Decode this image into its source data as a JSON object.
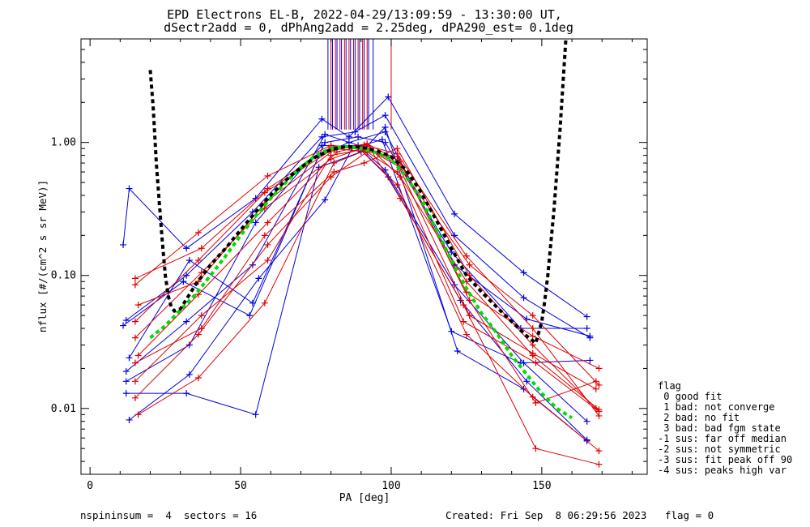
{
  "chart_data": {
    "type": "line",
    "title": "EPD Electrons EL-B, 2022-04-29/13:09:59 - 13:30:00 UT,",
    "subtitle": "dSectr2add = 0, dPhAng2add = 2.25deg, dPA290_est=   0.1deg",
    "xlabel": "PA [deg]",
    "ylabel": "nflux [#/(cm^2 s sr MeV)]",
    "xlim": [
      -3,
      185
    ],
    "ylim": [
      0.0032,
      6.0
    ],
    "yscale": "log",
    "x_ticks": [
      0,
      50,
      100,
      150
    ],
    "y_ticks": [
      {
        "value": 0.01,
        "label": "0.01"
      },
      {
        "value": 0.1,
        "label": "0.10"
      },
      {
        "value": 1.0,
        "label": "1.00"
      }
    ],
    "grid": false,
    "colors": {
      "blue": "#0000e0",
      "red": "#e00000",
      "fit_green": "#00dd00",
      "fit_black": "#000000"
    },
    "blue_sweeps": [
      {
        "x": [
          11,
          13,
          32,
          55,
          77,
          86,
          99,
          121,
          144,
          165
        ],
        "y": [
          0.17,
          0.45,
          0.16,
          0.38,
          1.5,
          1.1,
          2.2,
          0.29,
          0.105,
          0.049
        ]
      },
      {
        "x": [
          12,
          32,
          54,
          77,
          88,
          98,
          121,
          144,
          166
        ],
        "y": [
          0.046,
          0.1,
          0.3,
          1.1,
          1.2,
          1.6,
          0.2,
          0.068,
          0.034
        ]
      },
      {
        "x": [
          13,
          33,
          54,
          78,
          89,
          98,
          120,
          143,
          165
        ],
        "y": [
          0.024,
          0.13,
          0.062,
          1.0,
          1.1,
          1.0,
          0.15,
          0.04,
          0.04
        ]
      },
      {
        "x": [
          12,
          32,
          55,
          76,
          90,
          98,
          122,
          144,
          165
        ],
        "y": [
          0.013,
          0.013,
          0.009,
          0.65,
          0.85,
          1.3,
          0.027,
          0.014,
          0.0057
        ]
      },
      {
        "x": [
          13,
          33,
          56,
          78,
          87,
          97,
          120,
          143,
          166
        ],
        "y": [
          0.0082,
          0.018,
          0.095,
          0.37,
          0.9,
          1.05,
          0.038,
          0.022,
          0.023
        ]
      },
      {
        "x": [
          11,
          31,
          53,
          76,
          86,
          98,
          121,
          145,
          166
        ],
        "y": [
          0.042,
          0.09,
          0.05,
          0.8,
          1.0,
          1.2,
          0.12,
          0.047,
          0.035
        ]
      },
      {
        "x": [
          12,
          33,
          55,
          77,
          89,
          99,
          123,
          145,
          165
        ],
        "y": [
          0.016,
          0.03,
          0.25,
          0.95,
          0.92,
          0.55,
          0.065,
          0.016,
          0.0058
        ]
      },
      {
        "x": [
          12,
          32,
          54,
          78,
          89,
          98,
          121,
          144,
          165
        ],
        "y": [
          0.019,
          0.045,
          0.12,
          1.15,
          0.95,
          0.62,
          0.085,
          0.022,
          0.008
        ]
      }
    ],
    "red_sweeps": [
      {
        "x": [
          15,
          36,
          59,
          80,
          92,
          103,
          126,
          147,
          169
        ],
        "y": [
          0.085,
          0.21,
          0.56,
          0.95,
          0.9,
          0.65,
          0.12,
          0.05,
          0.015
        ]
      },
      {
        "x": [
          15,
          36,
          58,
          81,
          92,
          102,
          125,
          147,
          169
        ],
        "y": [
          0.045,
          0.13,
          0.42,
          0.9,
          0.85,
          0.78,
          0.075,
          0.035,
          0.02
        ]
      },
      {
        "x": [
          15,
          37,
          58,
          80,
          91,
          102,
          126,
          147,
          168
        ],
        "y": [
          0.034,
          0.105,
          0.32,
          0.75,
          0.92,
          0.7,
          0.05,
          0.026,
          0.014
        ]
      },
      {
        "x": [
          16,
          36,
          59,
          82,
          92,
          103,
          124,
          148,
          169
        ],
        "y": [
          0.025,
          0.072,
          0.25,
          0.85,
          0.95,
          0.55,
          0.045,
          0.022,
          0.0095
        ]
      },
      {
        "x": [
          15,
          37,
          59,
          80,
          90,
          102,
          125,
          147,
          169
        ],
        "y": [
          0.016,
          0.05,
          0.13,
          0.8,
          0.88,
          0.48,
          0.036,
          0.0122,
          0.0048
        ]
      },
      {
        "x": [
          16,
          36,
          58,
          81,
          93,
          103,
          124,
          148,
          169
        ],
        "y": [
          0.009,
          0.017,
          0.062,
          0.7,
          0.9,
          0.38,
          0.06,
          0.005,
          0.0038
        ]
      },
      {
        "x": [
          15,
          37,
          58,
          81,
          91,
          102,
          126,
          147,
          168
        ],
        "y": [
          0.022,
          0.04,
          0.2,
          0.6,
          0.7,
          0.9,
          0.1,
          0.03,
          0.01
        ]
      },
      {
        "x": [
          15,
          36,
          59,
          80,
          92,
          102,
          125,
          147,
          169
        ],
        "y": [
          0.012,
          0.036,
          0.17,
          0.55,
          0.85,
          0.6,
          0.09,
          0.025,
          0.0098
        ]
      },
      {
        "x": [
          16,
          36,
          58,
          81,
          92,
          103,
          126,
          148,
          168
        ],
        "y": [
          0.06,
          0.09,
          0.35,
          0.88,
          0.98,
          0.72,
          0.065,
          0.011,
          0.016
        ]
      },
      {
        "x": [
          15,
          37,
          59,
          80,
          91,
          102,
          125,
          147,
          169
        ],
        "y": [
          0.095,
          0.16,
          0.45,
          0.92,
          0.96,
          0.82,
          0.14,
          0.04,
          0.0088
        ]
      }
    ],
    "blue_saturated_x": [
      79,
      80.5,
      82,
      83.5,
      85,
      86.5,
      88,
      89.5,
      91,
      92.5,
      94
    ],
    "red_saturated_x": [
      80,
      81.5,
      83,
      84.5,
      86,
      87.5,
      89,
      90.5,
      92,
      100
    ],
    "green_fit": {
      "x": [
        20,
        25,
        30,
        35,
        40,
        45,
        50,
        55,
        60,
        65,
        70,
        75,
        80,
        85,
        90,
        95,
        100,
        105,
        110,
        115,
        120,
        125,
        130,
        135,
        140,
        145,
        150,
        155,
        160
      ],
      "y": [
        0.034,
        0.042,
        0.055,
        0.072,
        0.1,
        0.14,
        0.2,
        0.28,
        0.38,
        0.5,
        0.65,
        0.8,
        0.9,
        0.93,
        0.9,
        0.84,
        0.75,
        0.55,
        0.37,
        0.22,
        0.13,
        0.08,
        0.052,
        0.037,
        0.025,
        0.018,
        0.013,
        0.01,
        0.0085
      ]
    },
    "black_fit": {
      "x": [
        20,
        21,
        22,
        23,
        24,
        25,
        26,
        27,
        28,
        30,
        35,
        40,
        45,
        50,
        55,
        60,
        65,
        70,
        75,
        80,
        85,
        90,
        95,
        100,
        105,
        110,
        115,
        120,
        125,
        130,
        135,
        140,
        145,
        148,
        150,
        151,
        152,
        154,
        156,
        158
      ],
      "y": [
        3.5,
        1.8,
        0.7,
        0.35,
        0.18,
        0.1,
        0.07,
        0.058,
        0.054,
        0.056,
        0.085,
        0.12,
        0.16,
        0.22,
        0.3,
        0.4,
        0.52,
        0.65,
        0.78,
        0.88,
        0.93,
        0.92,
        0.87,
        0.78,
        0.62,
        0.42,
        0.26,
        0.16,
        0.1,
        0.075,
        0.058,
        0.045,
        0.035,
        0.031,
        0.045,
        0.065,
        0.1,
        0.3,
        1.2,
        6.0
      ]
    },
    "flag_legend_title": "flag",
    "flag_legend": [
      " 0 good fit",
      " 1 bad: not converge",
      " 2 bad: no fit",
      " 3 bad: bad fgm state",
      "-1 sus: far off median",
      "-2 sus: not symmetric",
      "-3 sus: fit peak off 90",
      "-4 sus: peaks high var"
    ],
    "footer_left": "nspininsum =  4  sectors = 16",
    "footer_right": "Created: Fri Sep  8 06:29:56 2023   flag = 0"
  }
}
